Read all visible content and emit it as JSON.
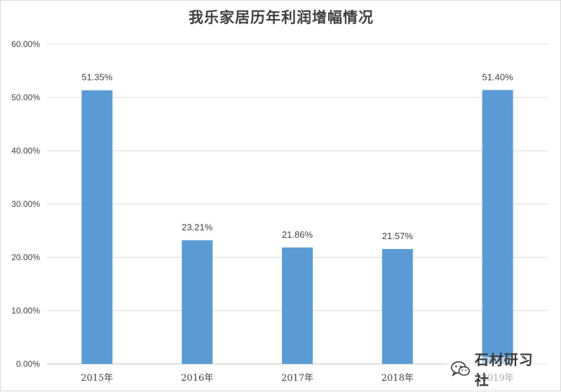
{
  "chart_data": {
    "type": "bar",
    "title": "我乐家居历年利润增幅情况",
    "categories": [
      "2015年",
      "2016年",
      "2017年",
      "2018年",
      "2019年"
    ],
    "values": [
      51.35,
      23.21,
      21.86,
      21.57,
      51.4
    ],
    "data_labels": [
      "51.35%",
      "23.21%",
      "21.86%",
      "21.57%",
      "51.40%"
    ],
    "y_ticks": [
      "0.00%",
      "10.00%",
      "20.00%",
      "30.00%",
      "40.00%",
      "50.00%",
      "60.00%"
    ],
    "ylim": [
      0,
      60
    ],
    "grid": true,
    "bar_color": "#5b9bd5"
  },
  "watermark": {
    "text": "石材研习社",
    "icon": "wechat-icon"
  }
}
